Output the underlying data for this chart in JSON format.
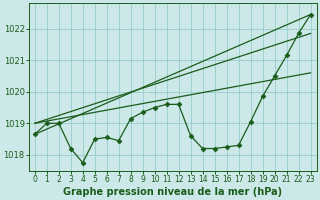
{
  "bg_color": "#cce8e8",
  "grid_color": "#99cccc",
  "line_color": "#1a5c1a",
  "title": "Graphe pression niveau de la mer (hPa)",
  "title_fontsize": 7.0,
  "ylabel_ticks": [
    1018,
    1019,
    1020,
    1021,
    1022
  ],
  "ylabel_fontsize": 6.0,
  "xlabel_fontsize": 5.5,
  "xlim": [
    -0.5,
    23.5
  ],
  "ylim": [
    1017.5,
    1022.8
  ],
  "xticks": [
    0,
    1,
    2,
    3,
    4,
    5,
    6,
    7,
    8,
    9,
    10,
    11,
    12,
    13,
    14,
    15,
    16,
    17,
    18,
    19,
    20,
    21,
    22,
    23
  ],
  "main_line": {
    "x": [
      0,
      1,
      2,
      3,
      4,
      5,
      6,
      7,
      8,
      9,
      10,
      11,
      12,
      13,
      14,
      15,
      16,
      17,
      18,
      19,
      20,
      21,
      22,
      23
    ],
    "y": [
      1018.65,
      1019.0,
      1019.0,
      1018.2,
      1017.75,
      1018.5,
      1018.55,
      1018.45,
      1019.15,
      1019.35,
      1019.5,
      1019.6,
      1019.6,
      1018.6,
      1018.2,
      1018.2,
      1018.25,
      1018.3,
      1019.05,
      1019.85,
      1020.5,
      1021.15,
      1021.85,
      1022.45
    ]
  },
  "trend_lines": [
    {
      "x0": 0,
      "y0": 1018.65,
      "x1": 23,
      "y1": 1022.45
    },
    {
      "x0": 0,
      "y0": 1019.0,
      "x1": 23,
      "y1": 1020.6
    },
    {
      "x0": 0,
      "y0": 1019.0,
      "x1": 23,
      "y1": 1021.85
    }
  ]
}
